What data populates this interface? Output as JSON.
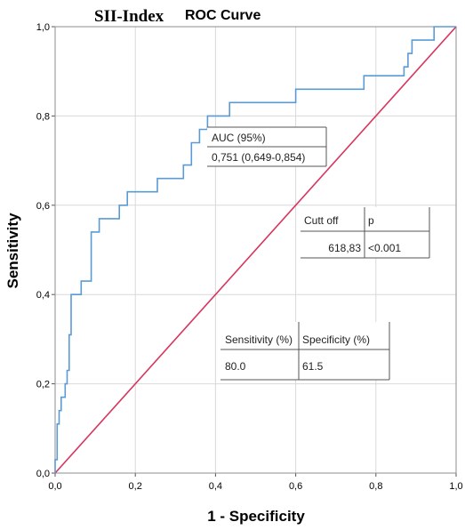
{
  "title": "SII-Index",
  "subtitle": "ROC Curve",
  "chart_data": {
    "type": "line",
    "xlabel": "1 - Specificity",
    "ylabel": "Sensitivity",
    "xlim": [
      0,
      1
    ],
    "ylim": [
      0,
      1
    ],
    "x_ticks": [
      "0,0",
      "0,2",
      "0,4",
      "0,6",
      "0,8",
      "1,0"
    ],
    "y_ticks": [
      "0,0",
      "0,2",
      "0,4",
      "0,6",
      "0,8",
      "1,0"
    ],
    "grid": true,
    "colors": {
      "roc": "#5b9bd5",
      "reference": "#d9345e"
    },
    "series": [
      {
        "values": [
          [
            0.0,
            0.0
          ],
          [
            0.0,
            0.03
          ],
          [
            0.005,
            0.03
          ],
          [
            0.005,
            0.11
          ],
          [
            0.01,
            0.11
          ],
          [
            0.01,
            0.14
          ],
          [
            0.015,
            0.14
          ],
          [
            0.015,
            0.17
          ],
          [
            0.025,
            0.17
          ],
          [
            0.025,
            0.2
          ],
          [
            0.03,
            0.2
          ],
          [
            0.03,
            0.23
          ],
          [
            0.035,
            0.23
          ],
          [
            0.035,
            0.31
          ],
          [
            0.04,
            0.31
          ],
          [
            0.04,
            0.4
          ],
          [
            0.065,
            0.4
          ],
          [
            0.065,
            0.43
          ],
          [
            0.09,
            0.43
          ],
          [
            0.09,
            0.54
          ],
          [
            0.11,
            0.54
          ],
          [
            0.11,
            0.57
          ],
          [
            0.16,
            0.57
          ],
          [
            0.16,
            0.6
          ],
          [
            0.18,
            0.6
          ],
          [
            0.18,
            0.63
          ],
          [
            0.255,
            0.63
          ],
          [
            0.255,
            0.66
          ],
          [
            0.32,
            0.66
          ],
          [
            0.32,
            0.69
          ],
          [
            0.34,
            0.69
          ],
          [
            0.34,
            0.74
          ],
          [
            0.36,
            0.74
          ],
          [
            0.36,
            0.77
          ],
          [
            0.38,
            0.77
          ],
          [
            0.38,
            0.8
          ],
          [
            0.435,
            0.8
          ],
          [
            0.435,
            0.83
          ],
          [
            0.6,
            0.83
          ],
          [
            0.6,
            0.86
          ],
          [
            0.77,
            0.86
          ],
          [
            0.77,
            0.89
          ],
          [
            0.87,
            0.89
          ],
          [
            0.87,
            0.91
          ],
          [
            0.88,
            0.91
          ],
          [
            0.88,
            0.94
          ],
          [
            0.89,
            0.94
          ],
          [
            0.89,
            0.97
          ],
          [
            0.945,
            0.97
          ],
          [
            0.945,
            1.0
          ],
          [
            1.0,
            1.0
          ]
        ]
      },
      {
        "values": [
          [
            0,
            0
          ],
          [
            1,
            1
          ]
        ]
      }
    ]
  },
  "tables": {
    "auc": {
      "header": "AUC (95%)",
      "value": "0,751 (0,649-0,854)"
    },
    "cutoff": {
      "headers": [
        "Cutt off",
        "p"
      ],
      "values": [
        "618,83",
        "<0.001"
      ]
    },
    "sensspec": {
      "headers": [
        "Sensitivity (%)",
        "Specificity (%)"
      ],
      "values": [
        "80.0",
        "61.5"
      ]
    }
  }
}
